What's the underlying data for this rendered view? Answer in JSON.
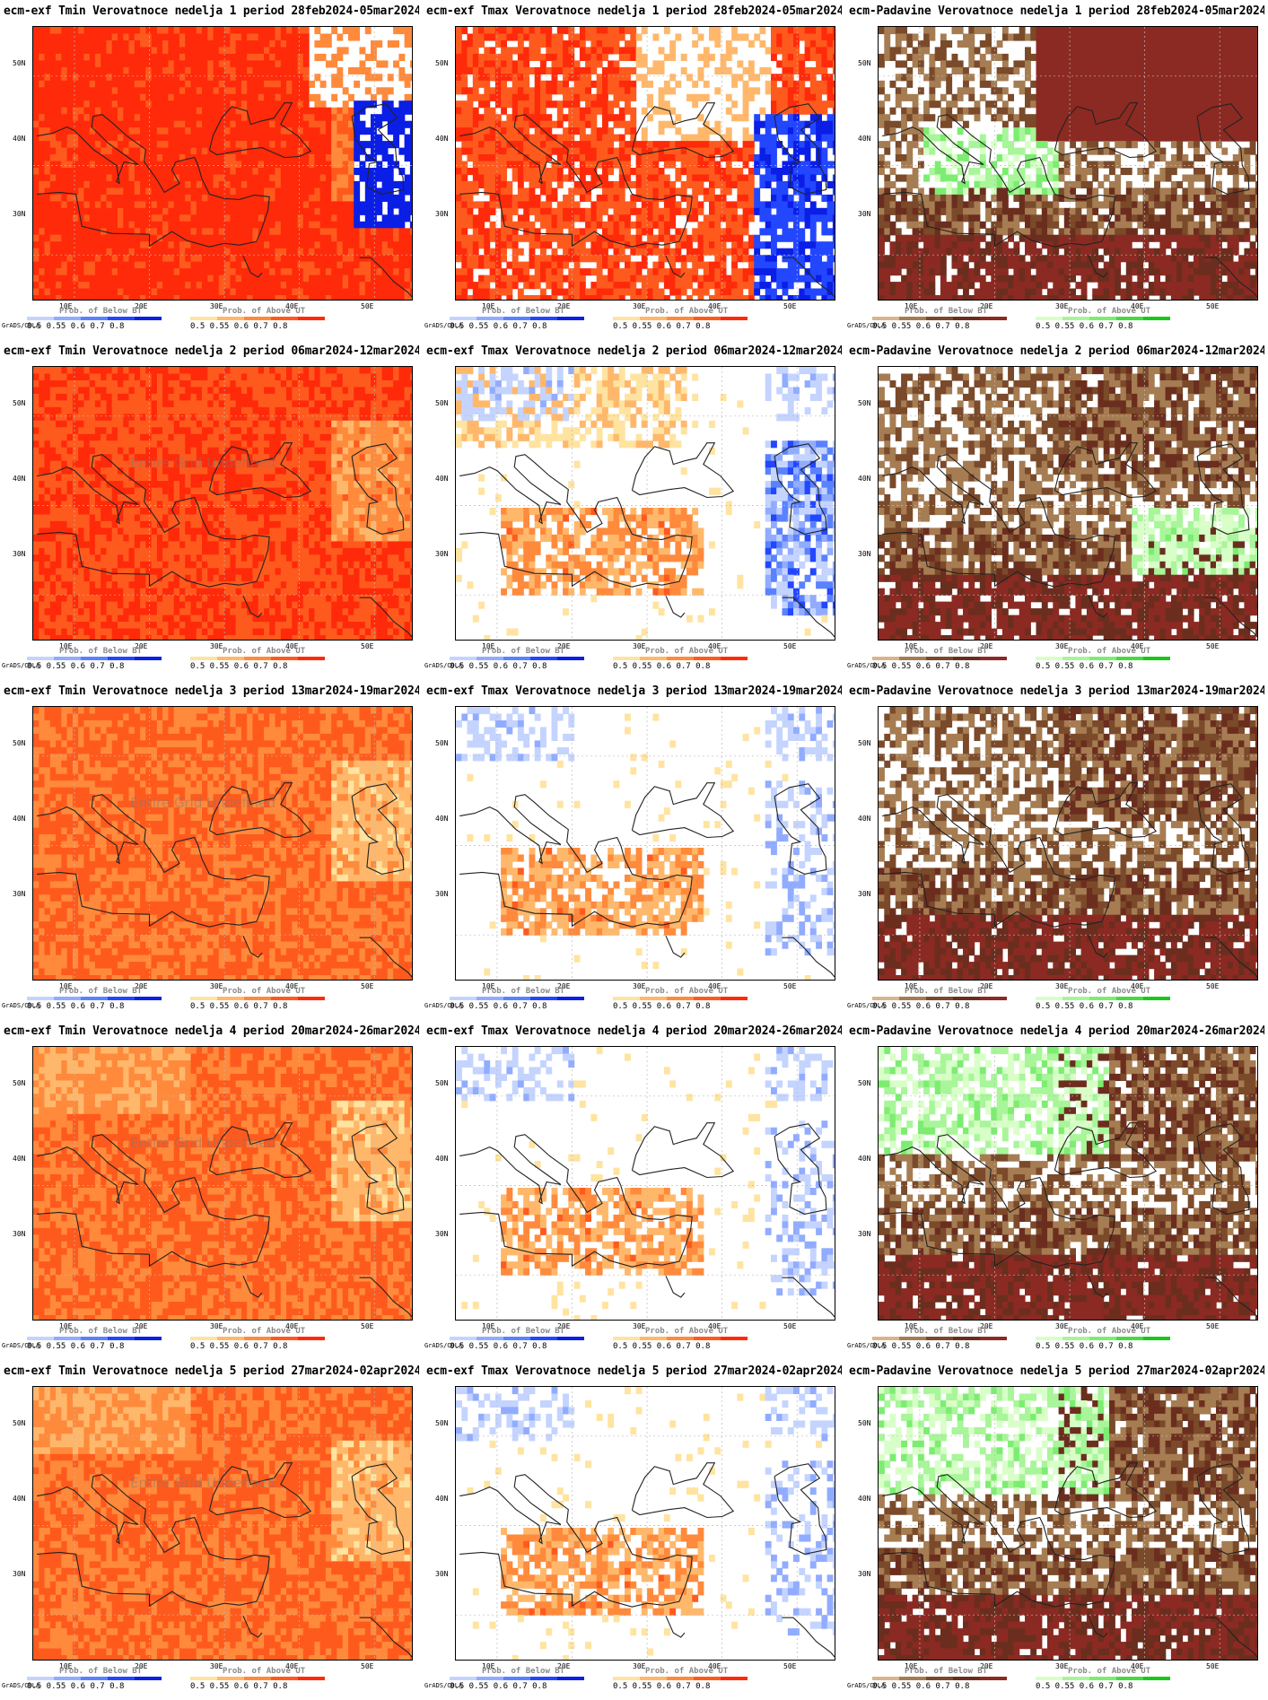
{
  "grads_label": "GrADS/COLA",
  "watermark_text": "Entire Grid Undefined",
  "axes": {
    "lat_labels": [
      "50N",
      "40N",
      "30N"
    ],
    "lon_labels": [
      "10E",
      "20E",
      "30E",
      "40E",
      "50E"
    ]
  },
  "legend": {
    "below_title": "Prob. of Below BT",
    "above_title": "Prob. of Above UT",
    "ticks": [
      "0.5",
      "0.55",
      "0.6",
      "0.7",
      "0.8"
    ]
  },
  "colors": {
    "below_temp": [
      "#c4d4ff",
      "#91acff",
      "#5a82ff",
      "#2346ff",
      "#0a1ee6"
    ],
    "above_temp": [
      "#ffe3a0",
      "#ffb86b",
      "#ff8a3c",
      "#ff5a1e",
      "#ff2a0a"
    ],
    "below_precip": [
      "#d8b48c",
      "#a67c52",
      "#7a4a2a",
      "#6b2e1e",
      "#8b2a22"
    ],
    "above_precip": [
      "#d8ffc8",
      "#a8f59a",
      "#7ced70",
      "#46d940",
      "#18c818"
    ]
  },
  "panels": [
    {
      "title": "ecm-exf Tmin Verovatnoce nedelja 1 period 28feb2024-05mar2024",
      "kind": "tmin",
      "watermark": false
    },
    {
      "title": "ecm-exf Tmax Verovatnoce nedelja 1 period 28feb2024-05mar2024",
      "kind": "tmax",
      "watermark": false
    },
    {
      "title": "ecm-Padavine Verovatnoce nedelja 1 period 28feb2024-05mar2024",
      "kind": "precip",
      "watermark": false
    },
    {
      "title": "ecm-exf Tmin Verovatnoce nedelja 2 period 06mar2024-12mar2024",
      "kind": "tmin",
      "watermark": true
    },
    {
      "title": "ecm-exf Tmax Verovatnoce nedelja 2 period 06mar2024-12mar2024",
      "kind": "tmax",
      "watermark": false
    },
    {
      "title": "ecm-Padavine Verovatnoce nedelja 2 period 06mar2024-12mar2024",
      "kind": "precip",
      "watermark": false
    },
    {
      "title": "ecm-exf Tmin Verovatnoce nedelja 3 period 13mar2024-19mar2024",
      "kind": "tmin",
      "watermark": true
    },
    {
      "title": "ecm-exf Tmax Verovatnoce nedelja 3 period 13mar2024-19mar2024",
      "kind": "tmax",
      "watermark": false
    },
    {
      "title": "ecm-Padavine Verovatnoce nedelja 3 period 13mar2024-19mar2024",
      "kind": "precip",
      "watermark": false
    },
    {
      "title": "ecm-exf Tmin Verovatnoce nedelja 4 period 20mar2024-26mar2024",
      "kind": "tmin",
      "watermark": true
    },
    {
      "title": "ecm-exf Tmax Verovatnoce nedelja 4 period 20mar2024-26mar2024",
      "kind": "tmax",
      "watermark": false
    },
    {
      "title": "ecm-Padavine Verovatnoce nedelja 4 period 20mar2024-26mar2024",
      "kind": "precip",
      "watermark": false
    },
    {
      "title": "ecm-exf Tmin Verovatnoce nedelja 5 period 27mar2024-02apr2024",
      "kind": "tmin",
      "watermark": true
    },
    {
      "title": "ecm-exf Tmax Verovatnoce nedelja 5 period 27mar2024-02apr2024",
      "kind": "tmax",
      "watermark": false
    },
    {
      "title": "ecm-Padavine Verovatnoce nedelja 5 period 27mar2024-02apr2024",
      "kind": "precip",
      "watermark": false
    }
  ]
}
